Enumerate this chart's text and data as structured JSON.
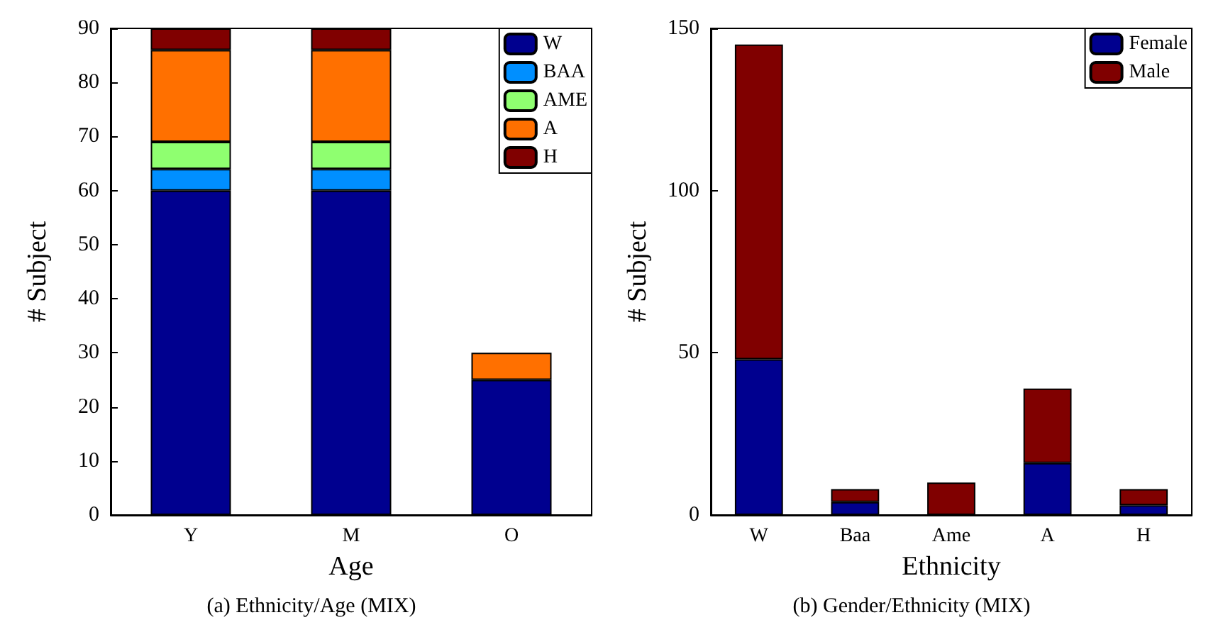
{
  "chart_data": [
    {
      "type": "bar",
      "stacked": true,
      "xlabel": "Age",
      "ylabel": "# Subject",
      "categories": [
        "Y",
        "M",
        "O"
      ],
      "ylim": [
        0,
        90
      ],
      "yticks": [
        0,
        10,
        20,
        30,
        40,
        50,
        60,
        70,
        80,
        90
      ],
      "grid": false,
      "legend": "top right",
      "series": [
        {
          "name": "W",
          "color": "#00008f",
          "values": [
            60,
            60,
            25
          ]
        },
        {
          "name": "BAA",
          "color": "#008fff",
          "values": [
            4,
            4,
            0
          ]
        },
        {
          "name": "AME",
          "color": "#8fff70",
          "values": [
            5,
            5,
            0
          ]
        },
        {
          "name": "A",
          "color": "#ff7000",
          "values": [
            17,
            17,
            5
          ]
        },
        {
          "name": "H",
          "color": "#800000",
          "values": [
            4,
            4,
            0
          ]
        }
      ],
      "annotations": [
        "(a) Ethnicity/Age (MIX)"
      ]
    },
    {
      "type": "bar",
      "stacked": true,
      "xlabel": "Ethnicity",
      "ylabel": "# Subject",
      "categories": [
        "W",
        "Baa",
        "Ame",
        "A",
        "H"
      ],
      "ylim": [
        0,
        150
      ],
      "yticks": [
        0,
        50,
        100,
        150
      ],
      "grid": false,
      "legend": "top right",
      "series": [
        {
          "name": "Female",
          "color": "#00008f",
          "values": [
            48,
            4,
            0,
            16,
            3
          ]
        },
        {
          "name": "Male",
          "color": "#800000",
          "values": [
            97,
            4,
            10,
            23,
            5
          ]
        }
      ],
      "annotations": [
        "(b) Gender/Ethnicity (MIX)"
      ]
    }
  ]
}
